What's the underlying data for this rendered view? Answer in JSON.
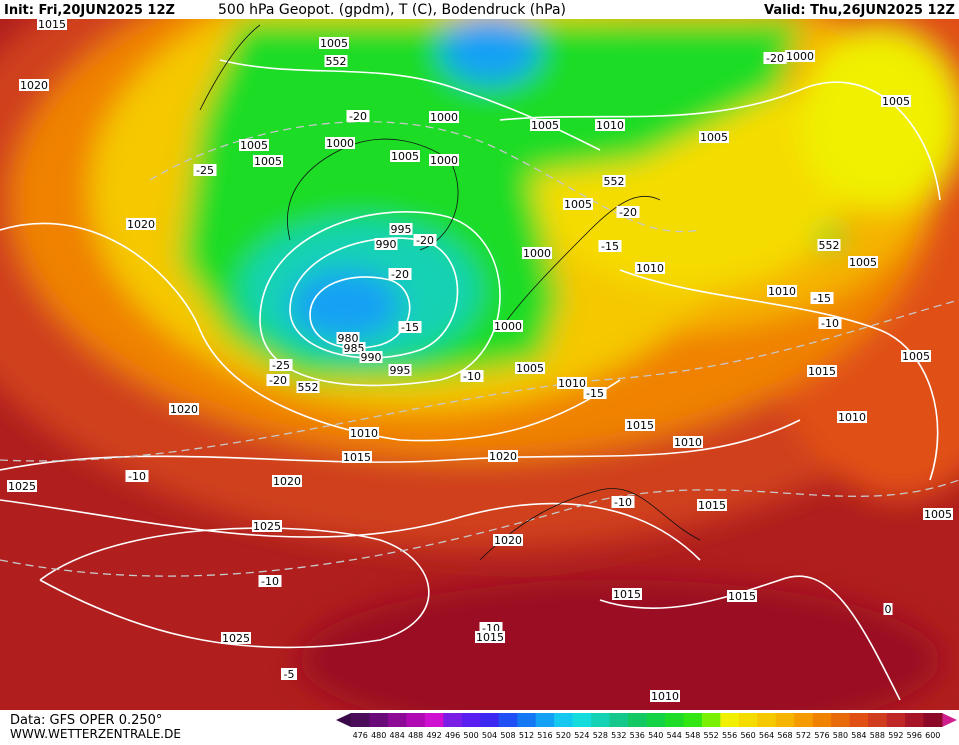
{
  "header": {
    "init": "Init: Fri,20JUN2025 12Z",
    "title": "500 hPa Geopot. (gpdm), T (C), Bodendruck (hPa)",
    "valid": "Valid: Thu,26JUN2025 12Z"
  },
  "footer": {
    "data": "Data: GFS OPER 0.250°",
    "site": "WWW.WETTERZENTRALE.DE"
  },
  "legend": {
    "values": [
      476,
      480,
      484,
      488,
      492,
      496,
      500,
      504,
      508,
      512,
      516,
      520,
      524,
      528,
      532,
      536,
      540,
      544,
      548,
      552,
      556,
      560,
      564,
      568,
      572,
      576,
      580,
      584,
      588,
      592,
      596,
      600
    ],
    "colors": [
      "#4b0c5a",
      "#6a0a78",
      "#8c0a96",
      "#b00ab4",
      "#d010d0",
      "#7a1ee6",
      "#5a1ef0",
      "#3c28f0",
      "#2050f5",
      "#1478f5",
      "#14a0f5",
      "#14c8f0",
      "#14dcdc",
      "#14d2b4",
      "#14c88c",
      "#14c864",
      "#14d246",
      "#1edc28",
      "#32e614",
      "#78f000",
      "#f0f000",
      "#f5dc00",
      "#f5c800",
      "#f5b400",
      "#f59b00",
      "#f08200",
      "#e86a0a",
      "#e05014",
      "#d03c1e",
      "#c02828",
      "#a81428",
      "#8c0a28"
    ]
  },
  "map_labels": [
    "1015",
    "1005",
    "552",
    "1020",
    "-20",
    "1000",
    "1005",
    "-20",
    "1000",
    "1005",
    "1010",
    "1005",
    "1005",
    "1000",
    "1005",
    "1000",
    "1005",
    "-25",
    "552",
    "1005",
    "-20",
    "1020",
    "995",
    "-20",
    "990",
    "-15",
    "1000",
    "552",
    "1005",
    "1010",
    "-20",
    "1010",
    "-15",
    "-10",
    "-15",
    "1000",
    "980",
    "985",
    "990",
    "1005",
    "-25",
    "995",
    "-20",
    "1005",
    "-10",
    "552",
    "1015",
    "1010",
    "-15",
    "1020",
    "1010",
    "1015",
    "1010",
    "1010",
    "1015",
    "1020",
    "-10",
    "1020",
    "1025",
    "-10",
    "1015",
    "1005",
    "1025",
    "1020",
    "-10",
    "1015",
    "1015",
    "0",
    "-10",
    "1015",
    "1025",
    "-5",
    "1010"
  ]
}
